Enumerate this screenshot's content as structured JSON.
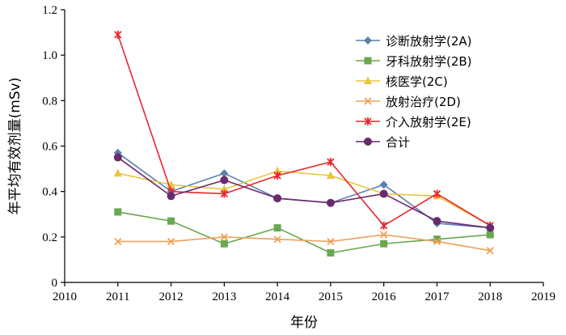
{
  "chart_data": {
    "type": "line",
    "xlabel": "年份",
    "ylabel": "年平均有效剂量(mSv)",
    "xlim": [
      2010,
      2019
    ],
    "ylim": [
      0,
      1.2
    ],
    "x_ticks": [
      "2010",
      "2011",
      "2012",
      "2013",
      "2014",
      "2015",
      "2016",
      "2017",
      "2018",
      "2019"
    ],
    "y_ticks": [
      "0",
      "0.2",
      "0.4",
      "0.6",
      "0.8",
      "1.0",
      "1.2"
    ],
    "grid": false,
    "legend_position": "top-right",
    "x": [
      2011,
      2012,
      2013,
      2014,
      2015,
      2016,
      2017,
      2018
    ],
    "series": [
      {
        "name": "诊断放射学(2A)",
        "values": [
          0.57,
          0.4,
          0.48,
          0.37,
          0.35,
          0.43,
          0.26,
          0.24
        ],
        "color": "#5b7fae",
        "marker": "diamond"
      },
      {
        "name": "牙科放射学(2B)",
        "values": [
          0.31,
          0.27,
          0.17,
          0.24,
          0.13,
          0.17,
          0.19,
          0.21
        ],
        "color": "#6aa84f",
        "marker": "square"
      },
      {
        "name": "核医学(2C)",
        "values": [
          0.48,
          0.43,
          0.41,
          0.49,
          0.47,
          0.39,
          0.38,
          0.25
        ],
        "color": "#e9c440",
        "marker": "triangle"
      },
      {
        "name": "放射治疗(2D)",
        "values": [
          0.18,
          0.18,
          0.2,
          0.19,
          0.18,
          0.21,
          0.18,
          0.14
        ],
        "color": "#f0a05a",
        "marker": "x"
      },
      {
        "name": "介入放射学(2E)",
        "values": [
          1.09,
          0.4,
          0.39,
          0.47,
          0.53,
          0.25,
          0.39,
          0.25
        ],
        "color": "#e8262e",
        "marker": "star"
      },
      {
        "name": "合计",
        "values": [
          0.55,
          0.38,
          0.45,
          0.37,
          0.35,
          0.39,
          0.27,
          0.24
        ],
        "color": "#6a2a6e",
        "marker": "circle"
      }
    ]
  }
}
